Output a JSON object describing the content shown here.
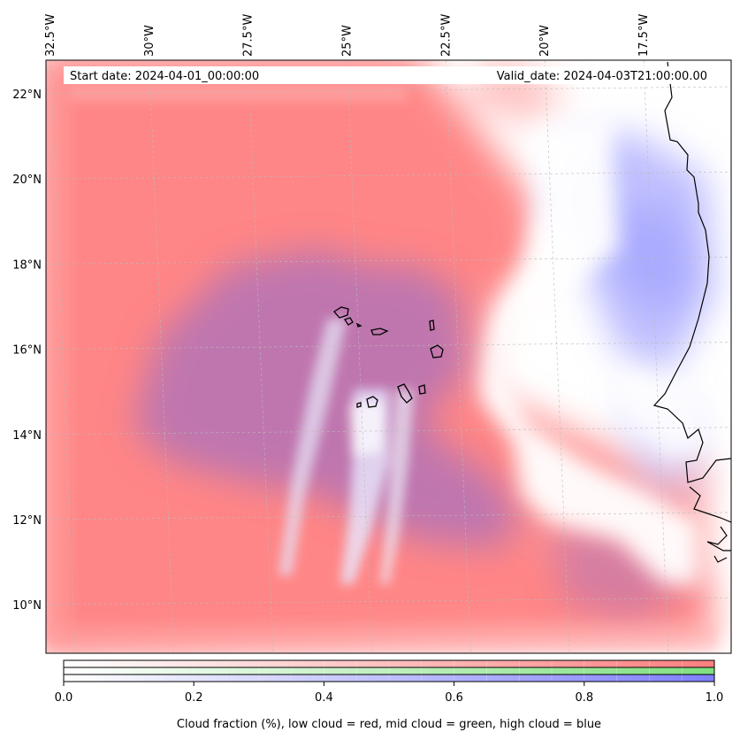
{
  "map": {
    "start_date_label": "Start date: 2024-04-01_00:00:00",
    "valid_date_label": "Valid_date: 2024-04-03T21:00:00.00",
    "lon_ticks": [
      {
        "label": "32.5°W",
        "value": -32.5
      },
      {
        "label": "30°W",
        "value": -30.0
      },
      {
        "label": "27.5°W",
        "value": -27.5
      },
      {
        "label": "25°W",
        "value": -25.0
      },
      {
        "label": "22.5°W",
        "value": -22.5
      },
      {
        "label": "20°W",
        "value": -20.0
      },
      {
        "label": "17.5°W",
        "value": -17.5
      }
    ],
    "lat_ticks": [
      {
        "label": "22°N",
        "value": 22
      },
      {
        "label": "20°N",
        "value": 20
      },
      {
        "label": "18°N",
        "value": 18
      },
      {
        "label": "16°N",
        "value": 16
      },
      {
        "label": "14°N",
        "value": 14
      },
      {
        "label": "12°N",
        "value": 12
      },
      {
        "label": "10°N",
        "value": 10
      }
    ],
    "colors": {
      "low_cloud": "#ff7f7f",
      "mid_cloud": "#7fff7f",
      "high_cloud": "#7f7fff",
      "coastline": "#000000",
      "gridline": "#bbbbbb"
    }
  },
  "colorbar": {
    "ticks": [
      {
        "label": "0.0",
        "value": 0.0
      },
      {
        "label": "0.2",
        "value": 0.2
      },
      {
        "label": "0.4",
        "value": 0.4
      },
      {
        "label": "0.6",
        "value": 0.6
      },
      {
        "label": "0.8",
        "value": 0.8
      },
      {
        "label": "1.0",
        "value": 1.0
      }
    ],
    "title": "Cloud fraction (%), low cloud = red, mid cloud = green, high cloud = blue"
  }
}
